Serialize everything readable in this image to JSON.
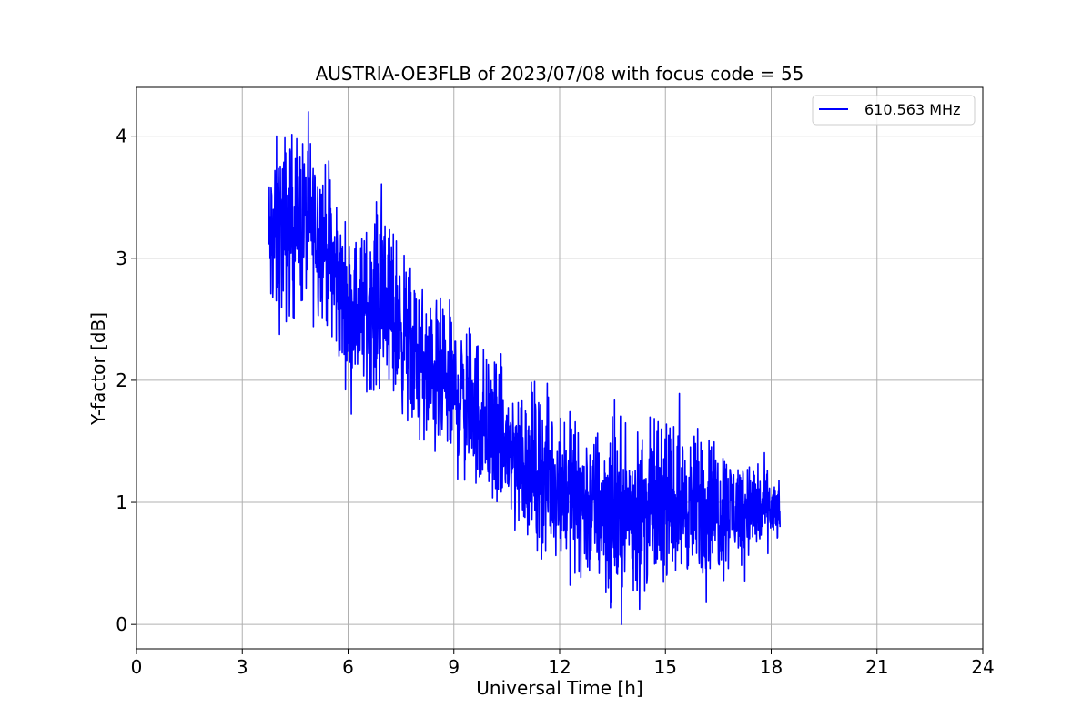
{
  "chart_data": {
    "type": "line",
    "title": "AUSTRIA-OE3FLB of 2023/07/08 with focus code = 55",
    "xlabel": "Universal Time [h]",
    "ylabel": "Y-factor [dB]",
    "xlim": [
      0,
      24
    ],
    "ylim": [
      -0.2,
      4.4
    ],
    "xticks": [
      0,
      3,
      6,
      9,
      12,
      15,
      18,
      21,
      24
    ],
    "yticks": [
      0,
      1,
      2,
      3,
      4
    ],
    "grid": true,
    "legend_position": "top-right",
    "series": [
      {
        "name": "610.563 MHz",
        "color": "#0000ff",
        "x": [
          3.75,
          4.0,
          4.25,
          4.5,
          4.75,
          5.0,
          5.25,
          5.5,
          5.75,
          6.0,
          6.25,
          6.5,
          6.75,
          7.0,
          7.25,
          7.5,
          7.75,
          8.0,
          8.25,
          8.5,
          8.75,
          9.0,
          9.25,
          9.5,
          9.75,
          10.0,
          10.25,
          10.5,
          10.75,
          11.0,
          11.25,
          11.5,
          11.75,
          12.0,
          12.25,
          12.5,
          12.75,
          13.0,
          13.25,
          13.5,
          13.75,
          14.0,
          14.25,
          14.5,
          14.75,
          15.0,
          15.25,
          15.5,
          15.75,
          16.0,
          16.25,
          16.5,
          16.75,
          17.0,
          17.25,
          17.5,
          17.75,
          18.0,
          18.25
        ],
        "y": [
          3.1,
          3.2,
          3.25,
          3.3,
          3.3,
          3.25,
          3.2,
          3.0,
          2.75,
          2.6,
          2.55,
          2.6,
          2.65,
          2.7,
          2.55,
          2.4,
          2.3,
          2.15,
          2.05,
          2.0,
          1.95,
          1.9,
          1.85,
          1.8,
          1.7,
          1.6,
          1.5,
          1.45,
          1.4,
          1.35,
          1.3,
          1.25,
          1.2,
          1.15,
          1.1,
          1.05,
          1.0,
          0.95,
          0.95,
          0.9,
          0.9,
          0.95,
          0.9,
          0.95,
          1.0,
          1.0,
          1.0,
          1.0,
          0.95,
          1.0,
          1.0,
          0.95,
          0.95,
          0.95,
          0.95,
          0.95,
          0.95,
          0.95,
          0.9
        ],
        "noise_amplitude": [
          0.45,
          0.55,
          0.55,
          0.5,
          0.5,
          0.5,
          0.45,
          0.45,
          0.45,
          0.4,
          0.45,
          0.45,
          0.5,
          0.55,
          0.5,
          0.45,
          0.45,
          0.45,
          0.45,
          0.45,
          0.45,
          0.45,
          0.45,
          0.45,
          0.45,
          0.45,
          0.4,
          0.45,
          0.45,
          0.45,
          0.45,
          0.45,
          0.45,
          0.45,
          0.45,
          0.45,
          0.45,
          0.45,
          0.5,
          0.5,
          0.5,
          0.45,
          0.5,
          0.45,
          0.45,
          0.4,
          0.4,
          0.4,
          0.4,
          0.45,
          0.4,
          0.4,
          0.35,
          0.3,
          0.3,
          0.3,
          0.25,
          0.2,
          0.15
        ]
      }
    ]
  }
}
